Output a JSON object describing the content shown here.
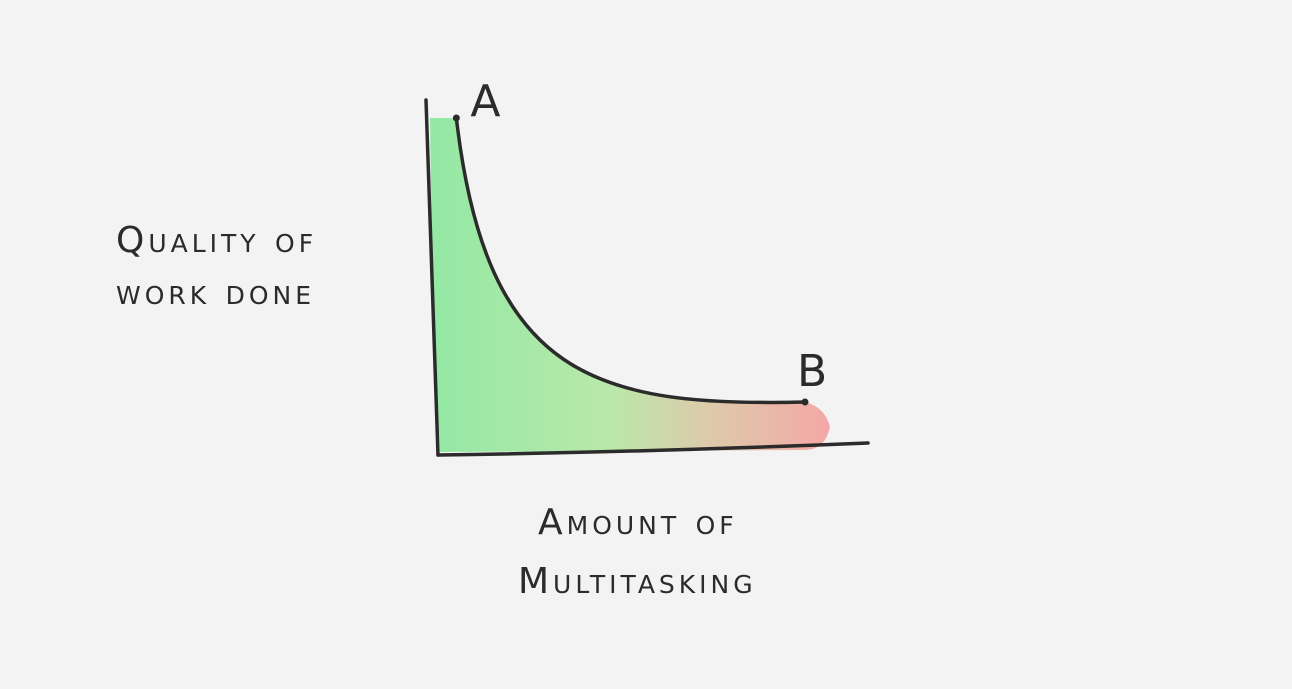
{
  "chart_data": {
    "type": "area",
    "title": "",
    "xlabel_lines": [
      "Amount of",
      "Multitasking"
    ],
    "ylabel_lines": [
      "Quality of",
      "work done"
    ],
    "axes_ticks": false,
    "grid": false,
    "legend": "none",
    "points": [
      {
        "label": "A",
        "x": 0.05,
        "y": 1.0
      },
      {
        "label": "B",
        "x": 1.0,
        "y": 0.05
      }
    ],
    "curve_shape": "decreasing convex, steep near A and flattening toward B",
    "gradient": {
      "start": "#8ee8a0",
      "end": "#f4a3a3"
    },
    "ink_color": "#2b2b2b"
  }
}
